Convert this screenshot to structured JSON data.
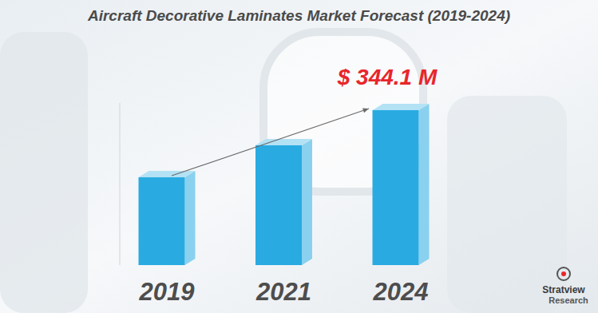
{
  "chart_data": {
    "type": "bar",
    "title": "Aircraft Decorative Laminates Market Forecast (2019-2024)",
    "categories": [
      "2019",
      "2021",
      "2024"
    ],
    "values": [
      195,
      266,
      344.1
    ],
    "value_labels": [
      null,
      null,
      "$ 344.1 M"
    ],
    "data_labels": true,
    "color": "#29abe2",
    "ylim": [
      0,
      360
    ],
    "tick_labels": "x",
    "grid": false
  },
  "logo": {
    "name": "Stratview",
    "subtitle": "Research"
  }
}
